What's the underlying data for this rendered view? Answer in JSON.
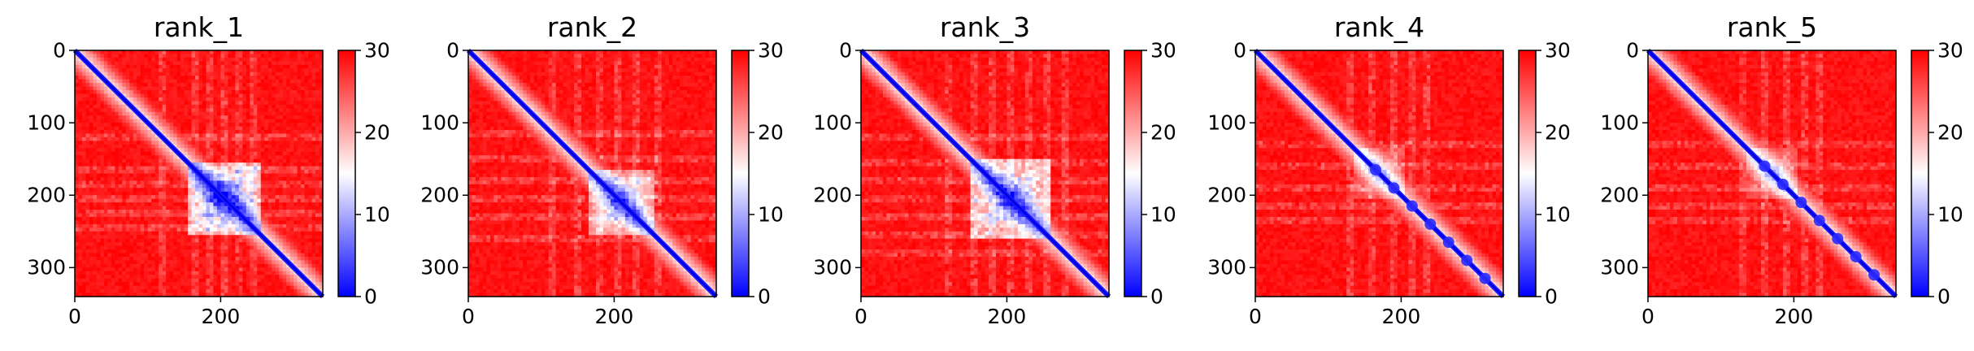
{
  "chart_data": [
    {
      "type": "heatmap",
      "title": "rank_1",
      "xticks": [
        "0",
        "200"
      ],
      "yticks": [
        "0",
        "100",
        "200",
        "300"
      ],
      "xlim": [
        0,
        340
      ],
      "ylim": [
        340,
        0
      ],
      "colorbar": {
        "ticks": [
          "0",
          "10",
          "20",
          "30"
        ],
        "range": [
          0,
          30
        ],
        "colors": [
          "#0000ff",
          "#ffffff",
          "#ff0000"
        ]
      },
      "features": {
        "block_center": 205,
        "block_halfwidth": 50,
        "block_strength": 0.85,
        "grid_lines": [
          120,
          165,
          185,
          205,
          225,
          245
        ],
        "diag_blobs": [],
        "diag_end": 340
      }
    },
    {
      "type": "heatmap",
      "title": "rank_2",
      "xticks": [
        "0",
        "200"
      ],
      "yticks": [
        "0",
        "100",
        "200",
        "300"
      ],
      "xlim": [
        0,
        340
      ],
      "ylim": [
        340,
        0
      ],
      "colorbar": {
        "ticks": [
          "0",
          "10",
          "20",
          "30"
        ],
        "range": [
          0,
          30
        ],
        "colors": [
          "#0000ff",
          "#ffffff",
          "#ff0000"
        ]
      },
      "features": {
        "block_center": 210,
        "block_halfwidth": 45,
        "block_strength": 0.7,
        "grid_lines": [
          115,
          150,
          180,
          205,
          230,
          260
        ],
        "diag_blobs": [],
        "diag_end": 340
      }
    },
    {
      "type": "heatmap",
      "title": "rank_3",
      "xticks": [
        "0",
        "200"
      ],
      "yticks": [
        "0",
        "100",
        "200",
        "300"
      ],
      "xlim": [
        0,
        340
      ],
      "ylim": [
        340,
        0
      ],
      "colorbar": {
        "ticks": [
          "0",
          "10",
          "20",
          "30"
        ],
        "range": [
          0,
          30
        ],
        "colors": [
          "#0000ff",
          "#ffffff",
          "#ff0000"
        ]
      },
      "features": {
        "block_center": 205,
        "block_halfwidth": 55,
        "block_strength": 0.75,
        "grid_lines": [
          120,
          155,
          180,
          205,
          230,
          255,
          280
        ],
        "diag_blobs": [],
        "diag_end": 340
      }
    },
    {
      "type": "heatmap",
      "title": "rank_4",
      "xticks": [
        "0",
        "200"
      ],
      "yticks": [
        "0",
        "100",
        "200",
        "300"
      ],
      "xlim": [
        0,
        340
      ],
      "ylim": [
        340,
        0
      ],
      "colorbar": {
        "ticks": [
          "0",
          "10",
          "20",
          "30"
        ],
        "range": [
          0,
          30
        ],
        "colors": [
          "#0000ff",
          "#ffffff",
          "#ff0000"
        ]
      },
      "features": {
        "block_center": 170,
        "block_halfwidth": 35,
        "block_strength": 0.35,
        "grid_lines": [
          130,
          160,
          190,
          215,
          235
        ],
        "diag_blobs": [
          165,
          190,
          215,
          240,
          265,
          290,
          315
        ],
        "diag_end": 340
      }
    },
    {
      "type": "heatmap",
      "title": "rank_5",
      "xticks": [
        "0",
        "200"
      ],
      "yticks": [
        "0",
        "100",
        "200",
        "300"
      ],
      "xlim": [
        0,
        340
      ],
      "ylim": [
        340,
        0
      ],
      "colorbar": {
        "ticks": [
          "0",
          "10",
          "20",
          "30"
        ],
        "range": [
          0,
          30
        ],
        "colors": [
          "#0000ff",
          "#ffffff",
          "#ff0000"
        ]
      },
      "features": {
        "block_center": 170,
        "block_halfwidth": 35,
        "block_strength": 0.35,
        "grid_lines": [
          130,
          160,
          190,
          215,
          235
        ],
        "diag_blobs": [
          160,
          185,
          210,
          235,
          260,
          285,
          310
        ],
        "diag_end": 340
      }
    }
  ]
}
